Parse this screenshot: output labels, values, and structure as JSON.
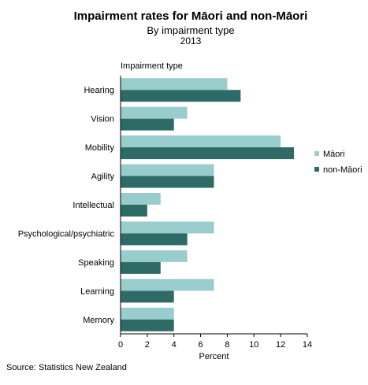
{
  "title": "Impairment rates for Māori and non-Māori",
  "subtitle": "By impairment type",
  "year": "2013",
  "ytitle": "Impairment type",
  "source": "Source: Statistics New Zealand",
  "colors": {
    "maori": "#99cccc",
    "non_maori": "#2f6b66"
  },
  "chart_data": {
    "type": "bar",
    "orientation": "horizontal",
    "categories": [
      "Hearing",
      "Vision",
      "Mobility",
      "Agility",
      "Intellectual",
      "Psychological/psychiatric",
      "Speaking",
      "Learning",
      "Memory"
    ],
    "series": [
      {
        "name": "Māori",
        "values": [
          8,
          5,
          12,
          7,
          3,
          7,
          5,
          7,
          4
        ]
      },
      {
        "name": "non-Māori",
        "values": [
          9,
          4,
          13,
          7,
          2,
          5,
          3,
          4,
          4
        ]
      }
    ],
    "xlabel": "Percent",
    "ylabel": "Impairment type",
    "xlim": [
      0,
      14
    ],
    "xticks": [
      0,
      2,
      4,
      6,
      8,
      10,
      12,
      14
    ],
    "grid": false,
    "legend": "right"
  }
}
